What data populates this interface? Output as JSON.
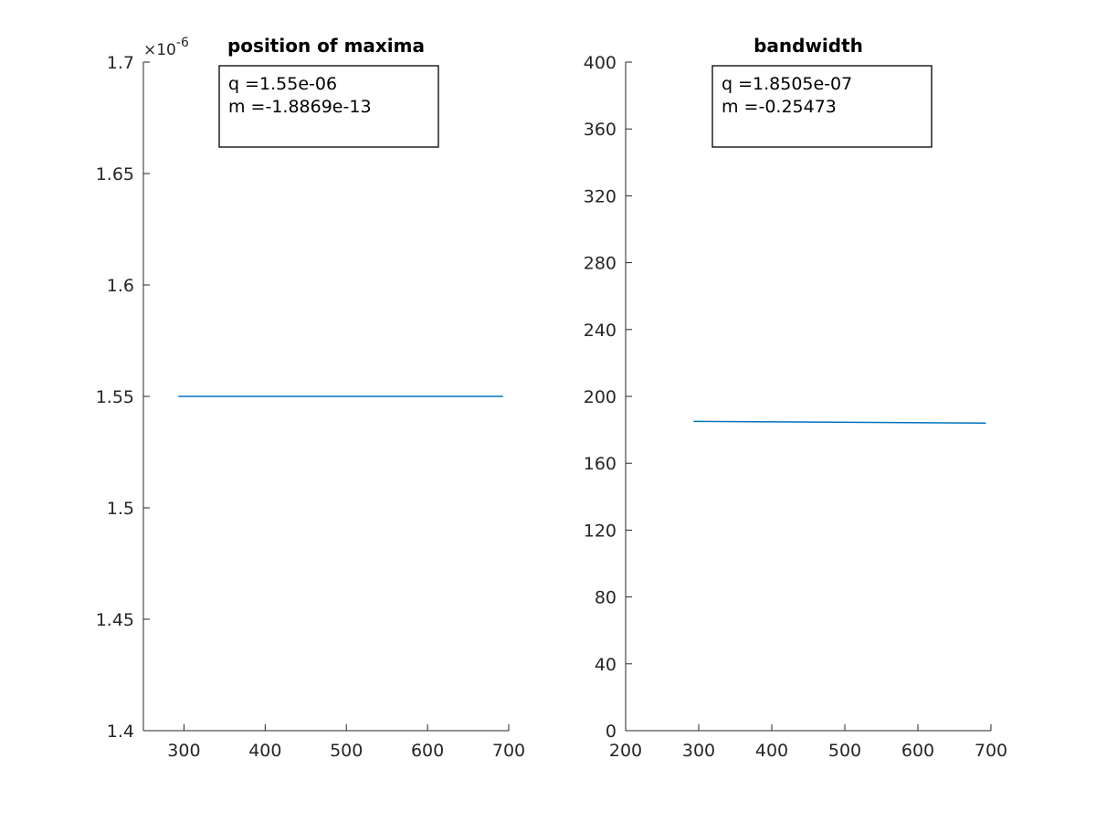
{
  "chart_data": [
    {
      "type": "line",
      "title": "position of maxima",
      "xlabel": "",
      "ylabel": "",
      "xlim": [
        250,
        700
      ],
      "ylim": [
        1.4e-06,
        1.7e-06
      ],
      "x_ticks": [
        300,
        400,
        500,
        600,
        700
      ],
      "x_tick_labels": [
        "300",
        "400",
        "500",
        "600",
        "700"
      ],
      "y_ticks": [
        1.4e-06,
        1.45e-06,
        1.5e-06,
        1.55e-06,
        1.6e-06,
        1.65e-06,
        1.7e-06
      ],
      "y_tick_labels": [
        "1.4",
        "1.45",
        "1.5",
        "1.55",
        "1.6",
        "1.65",
        "1.7"
      ],
      "y_exponent_prefix": "×10",
      "y_exponent": "-6",
      "grid": false,
      "series": [
        {
          "x": [
            293,
            693
          ],
          "y": [
            1.55e-06,
            1.55e-06
          ],
          "color": "#0072BD"
        }
      ],
      "annotation": [
        "q =1.55e-06",
        "m =-1.8869e-13"
      ]
    },
    {
      "type": "line",
      "title": "bandwidth",
      "xlabel": "",
      "ylabel": "",
      "xlim": [
        200,
        700
      ],
      "ylim": [
        0,
        400
      ],
      "x_ticks": [
        200,
        300,
        400,
        500,
        600,
        700
      ],
      "x_tick_labels": [
        "200",
        "300",
        "400",
        "500",
        "600",
        "700"
      ],
      "y_ticks": [
        0,
        40,
        80,
        120,
        160,
        200,
        240,
        280,
        320,
        360,
        400
      ],
      "y_tick_labels": [
        "0",
        "40",
        "80",
        "120",
        "160",
        "200",
        "240",
        "280",
        "320",
        "360",
        "400"
      ],
      "grid": false,
      "series": [
        {
          "x": [
            293,
            693
          ],
          "y": [
            185,
            184
          ],
          "color": "#0072BD"
        }
      ],
      "annotation": [
        "q =1.8505e-07",
        "m =-0.25473"
      ]
    }
  ]
}
